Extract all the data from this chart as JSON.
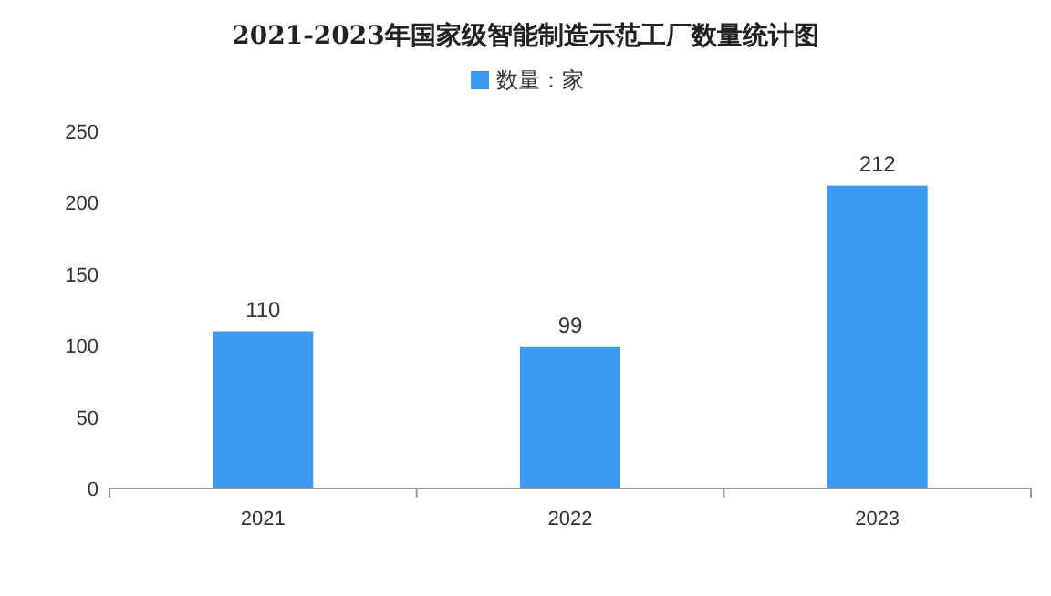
{
  "chart_data": {
    "type": "bar",
    "title": "2021-2023年国家级智能制造示范工厂数量统计图",
    "categories": [
      "2021",
      "2022",
      "2023"
    ],
    "series": [
      {
        "name": "数量：家",
        "color": "#3c9af0",
        "values": [
          110,
          99,
          212
        ]
      }
    ],
    "ylim": [
      0,
      250
    ],
    "yticks": [
      0,
      50,
      100,
      150,
      200,
      250
    ],
    "data_labels": true,
    "legend": "top",
    "grid": false
  }
}
